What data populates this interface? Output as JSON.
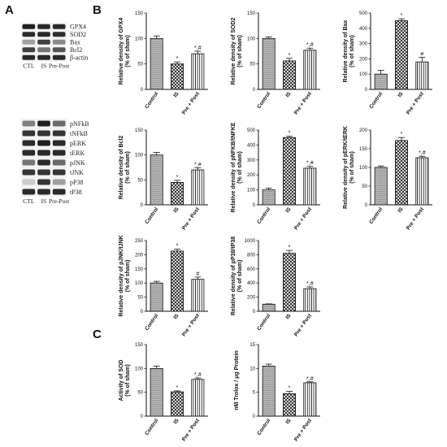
{
  "panels": {
    "A": "A",
    "B": "B",
    "C": "C"
  },
  "blots": [
    {
      "bands": [
        "GPX4",
        "SOD2",
        "Bax",
        "Bcl2",
        "β-actin"
      ],
      "intensity": [
        [
          0.95,
          0.9,
          0.9
        ],
        [
          0.9,
          0.9,
          0.88
        ],
        [
          0.35,
          0.8,
          0.45
        ],
        [
          0.8,
          0.55,
          0.7
        ],
        [
          0.9,
          0.9,
          0.9
        ]
      ],
      "lanes": [
        "CTL",
        "IS",
        "Pre-Post"
      ]
    },
    {
      "bands": [
        "pNFkB",
        "tNFkB",
        "pERK",
        "tERK",
        "pJNK",
        "tJNK",
        "pP38",
        "tP38"
      ],
      "intensity": [
        [
          0.5,
          0.95,
          0.6
        ],
        [
          0.85,
          0.85,
          0.85
        ],
        [
          0.9,
          0.95,
          0.9
        ],
        [
          0.9,
          0.9,
          0.9
        ],
        [
          0.55,
          0.9,
          0.6
        ],
        [
          0.85,
          0.85,
          0.85
        ],
        [
          0.15,
          0.85,
          0.35
        ],
        [
          0.9,
          0.9,
          0.9
        ]
      ],
      "lanes": [
        "CTL",
        "IS",
        "Pre-Post"
      ]
    }
  ],
  "chart_data": [
    {
      "type": "bar",
      "panel": "B",
      "categories": [
        "Control",
        "IS",
        "Pre + Post"
      ],
      "values": [
        100,
        50,
        70
      ],
      "errors": [
        5,
        4,
        5
      ],
      "significance": [
        "",
        "*",
        "*,#"
      ],
      "ylabel_lines": [
        "Relative density of GPX4",
        "(% of sham)"
      ],
      "ylim": [
        0,
        150
      ],
      "yticks": [
        0,
        50,
        100,
        150
      ],
      "patterns": [
        "horizontal",
        "crosshatch",
        "vertical"
      ]
    },
    {
      "type": "bar",
      "panel": "B",
      "categories": [
        "Control",
        "IS",
        "Pre + Post"
      ],
      "values": [
        100,
        56,
        77
      ],
      "errors": [
        3,
        5,
        4
      ],
      "significance": [
        "",
        "*",
        "*,#"
      ],
      "ylabel_lines": [
        "Relative density of SOD2",
        "(% of sham)"
      ],
      "ylim": [
        0,
        150
      ],
      "yticks": [
        0,
        50,
        100,
        150
      ],
      "patterns": [
        "horizontal",
        "crosshatch",
        "vertical"
      ]
    },
    {
      "type": "bar",
      "panel": "B",
      "categories": [
        "Control",
        "IS",
        "Pre + Post"
      ],
      "values": [
        100,
        450,
        180
      ],
      "errors": [
        25,
        12,
        30
      ],
      "significance": [
        "",
        "*",
        "#"
      ],
      "ylabel_lines": [
        "Relative density of Bax",
        "(% of sham)"
      ],
      "ylim": [
        0,
        500
      ],
      "yticks": [
        0,
        100,
        200,
        300,
        400,
        500
      ],
      "patterns": [
        "horizontal",
        "crosshatch",
        "vertical"
      ]
    },
    {
      "type": "bar",
      "panel": "B",
      "categories": [
        "Control",
        "IS",
        "Pre + Post"
      ],
      "values": [
        100,
        45,
        70
      ],
      "errors": [
        5,
        4,
        4
      ],
      "significance": [
        "",
        "*",
        "*,#"
      ],
      "ylabel_lines": [
        "Relative density of Bcl2",
        "(% of sham)"
      ],
      "ylim": [
        0,
        150
      ],
      "yticks": [
        0,
        50,
        100,
        150
      ],
      "patterns": [
        "horizontal",
        "crosshatch",
        "vertical"
      ]
    },
    {
      "type": "bar",
      "panel": "B",
      "categories": [
        "Control",
        "IS",
        "Pre + Post"
      ],
      "values": [
        100,
        450,
        245
      ],
      "errors": [
        12,
        8,
        12
      ],
      "significance": [
        "",
        "*",
        "*,#"
      ],
      "ylabel_lines": [
        "Relative density of pNFKB/tNFKE",
        "(% of sham)"
      ],
      "ylim": [
        0,
        500
      ],
      "yticks": [
        0,
        100,
        200,
        300,
        400,
        500
      ],
      "patterns": [
        "horizontal",
        "crosshatch",
        "vertical"
      ]
    },
    {
      "type": "bar",
      "panel": "B",
      "categories": [
        "Control",
        "IS",
        "Pre + Post"
      ],
      "values": [
        100,
        172,
        126
      ],
      "errors": [
        4,
        8,
        4
      ],
      "significance": [
        "",
        "*",
        "*,#"
      ],
      "ylabel_lines": [
        "Relative density of pERK/tERK",
        "(% of sham)"
      ],
      "ylim": [
        0,
        200
      ],
      "yticks": [
        0,
        50,
        100,
        150,
        200
      ],
      "patterns": [
        "horizontal",
        "crosshatch",
        "vertical"
      ]
    },
    {
      "type": "bar",
      "panel": "B",
      "categories": [
        "Control",
        "IS",
        "Pre + Post"
      ],
      "values": [
        100,
        213,
        113
      ],
      "errors": [
        6,
        7,
        8
      ],
      "significance": [
        "",
        "*",
        "#"
      ],
      "ylabel_lines": [
        "Relative density of pJNK/tJNK",
        "(% of sham)"
      ],
      "ylim": [
        0,
        250
      ],
      "yticks": [
        0,
        50,
        100,
        150,
        200,
        250
      ],
      "patterns": [
        "horizontal",
        "crosshatch",
        "vertical"
      ]
    },
    {
      "type": "bar",
      "panel": "B",
      "categories": [
        "Control",
        "IS",
        "Pre + Post"
      ],
      "values": [
        100,
        820,
        320
      ],
      "errors": [
        5,
        40,
        25
      ],
      "significance": [
        "",
        "*",
        "*,#"
      ],
      "ylabel_lines": [
        "Relative density of pP38/tP38",
        "(% of sham)"
      ],
      "ylim": [
        0,
        1000
      ],
      "yticks": [
        0,
        200,
        400,
        600,
        800,
        1000
      ],
      "patterns": [
        "horizontal",
        "crosshatch",
        "vertical"
      ]
    },
    {
      "type": "bar",
      "panel": "C",
      "categories": [
        "Control",
        "IS",
        "Pre + Post"
      ],
      "values": [
        100,
        51,
        77
      ],
      "errors": [
        5,
        2,
        3
      ],
      "significance": [
        "",
        "*",
        "*,#"
      ],
      "ylabel_lines": [
        "Activity of SOD",
        "(% of sham)"
      ],
      "ylim": [
        0,
        150
      ],
      "yticks": [
        0,
        50,
        100,
        150
      ],
      "patterns": [
        "horizontal",
        "crosshatch",
        "vertical"
      ]
    },
    {
      "type": "bar",
      "panel": "C",
      "categories": [
        "Control",
        "IS",
        "Pre + Post"
      ],
      "values": [
        10.5,
        4.7,
        7.0
      ],
      "errors": [
        0.4,
        0.5,
        0.2
      ],
      "significance": [
        "",
        "*",
        "*,#"
      ],
      "ylabel_lines": [
        "nM Trolox / μg Protein"
      ],
      "ylim": [
        0,
        15
      ],
      "yticks": [
        0,
        5,
        10,
        15
      ],
      "patterns": [
        "horizontal",
        "crosshatch",
        "vertical"
      ]
    }
  ]
}
